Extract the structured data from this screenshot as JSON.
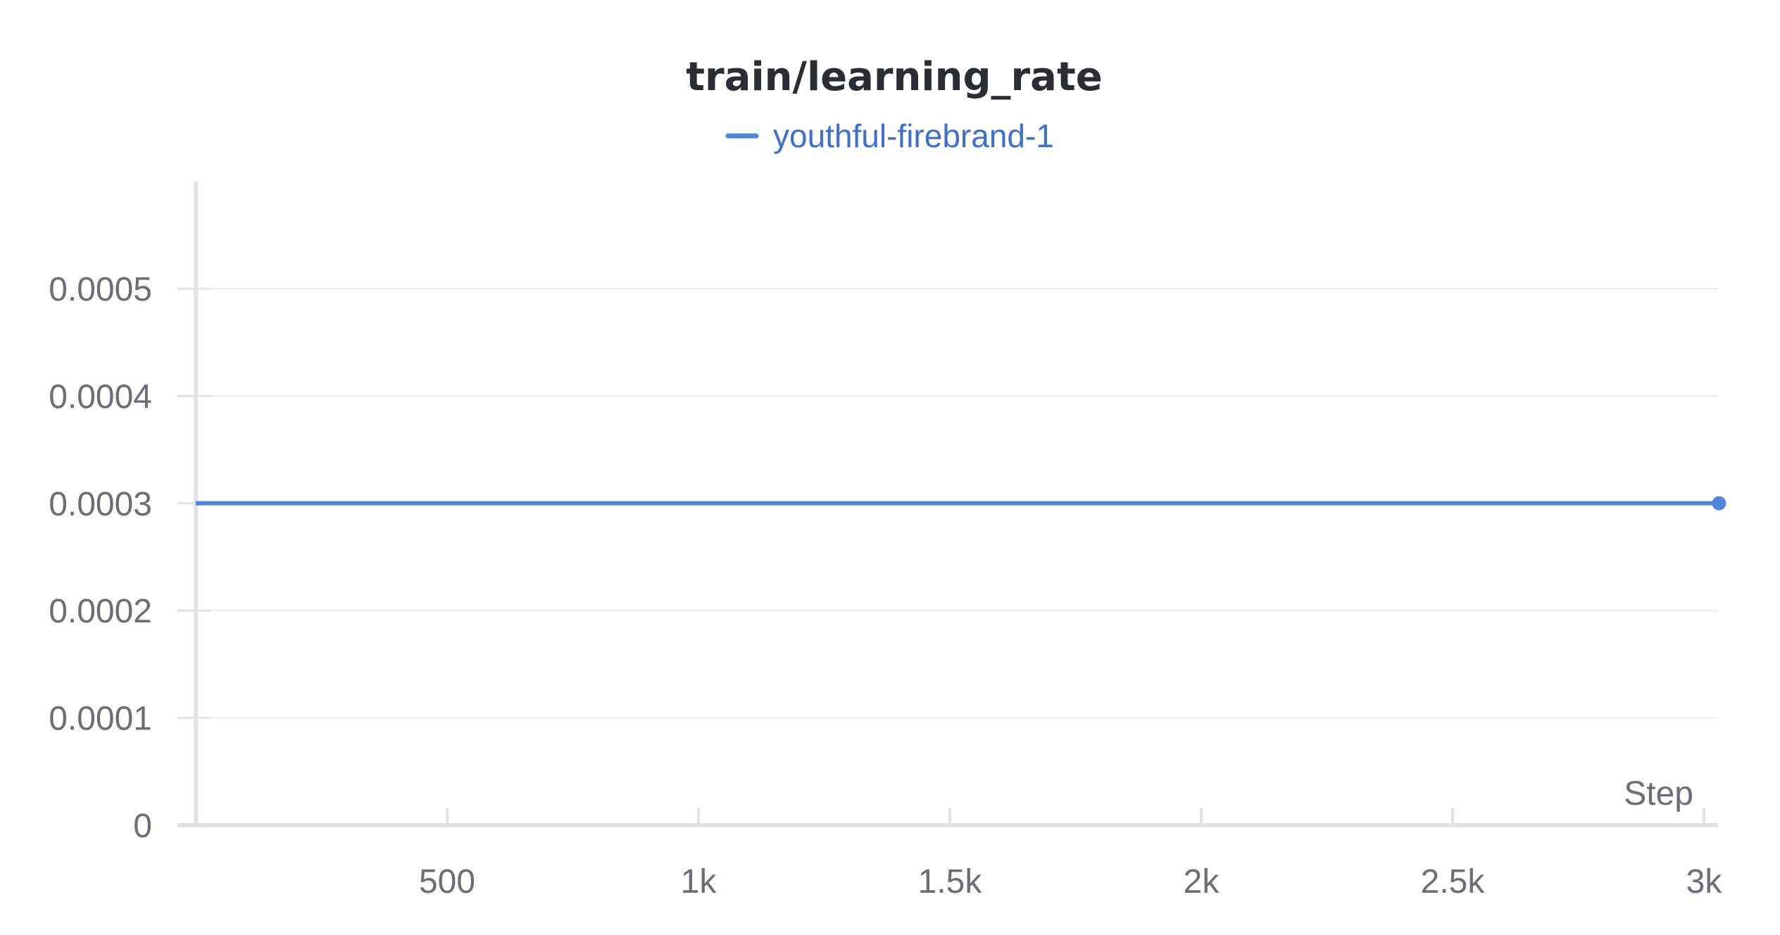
{
  "chart_data": {
    "type": "line",
    "title": "train/learning_rate",
    "xlabel": "Step",
    "ylabel": "",
    "xlim": [
      0,
      3030
    ],
    "ylim": [
      0,
      0.0006
    ],
    "x_ticks": [
      500,
      1000,
      1500,
      2000,
      2500,
      3000
    ],
    "x_tick_labels": [
      "500",
      "1k",
      "1.5k",
      "2k",
      "2.5k",
      "3k"
    ],
    "y_ticks": [
      0,
      0.0001,
      0.0002,
      0.0003,
      0.0004,
      0.0005
    ],
    "y_tick_labels": [
      "0",
      "0.0001",
      "0.0002",
      "0.0003",
      "0.0004",
      "0.0005"
    ],
    "grid": true,
    "legend_position": "top-center",
    "series": [
      {
        "name": "youthful-firebrand-1",
        "color": "#4f86dc",
        "x": [
          0,
          3030
        ],
        "y": [
          0.0003,
          0.0003
        ],
        "last_point_marker": true
      }
    ]
  },
  "colors": {
    "axis": "#e3e3e6",
    "grid": "#ececee",
    "legend_text": "#3d6fd1"
  }
}
